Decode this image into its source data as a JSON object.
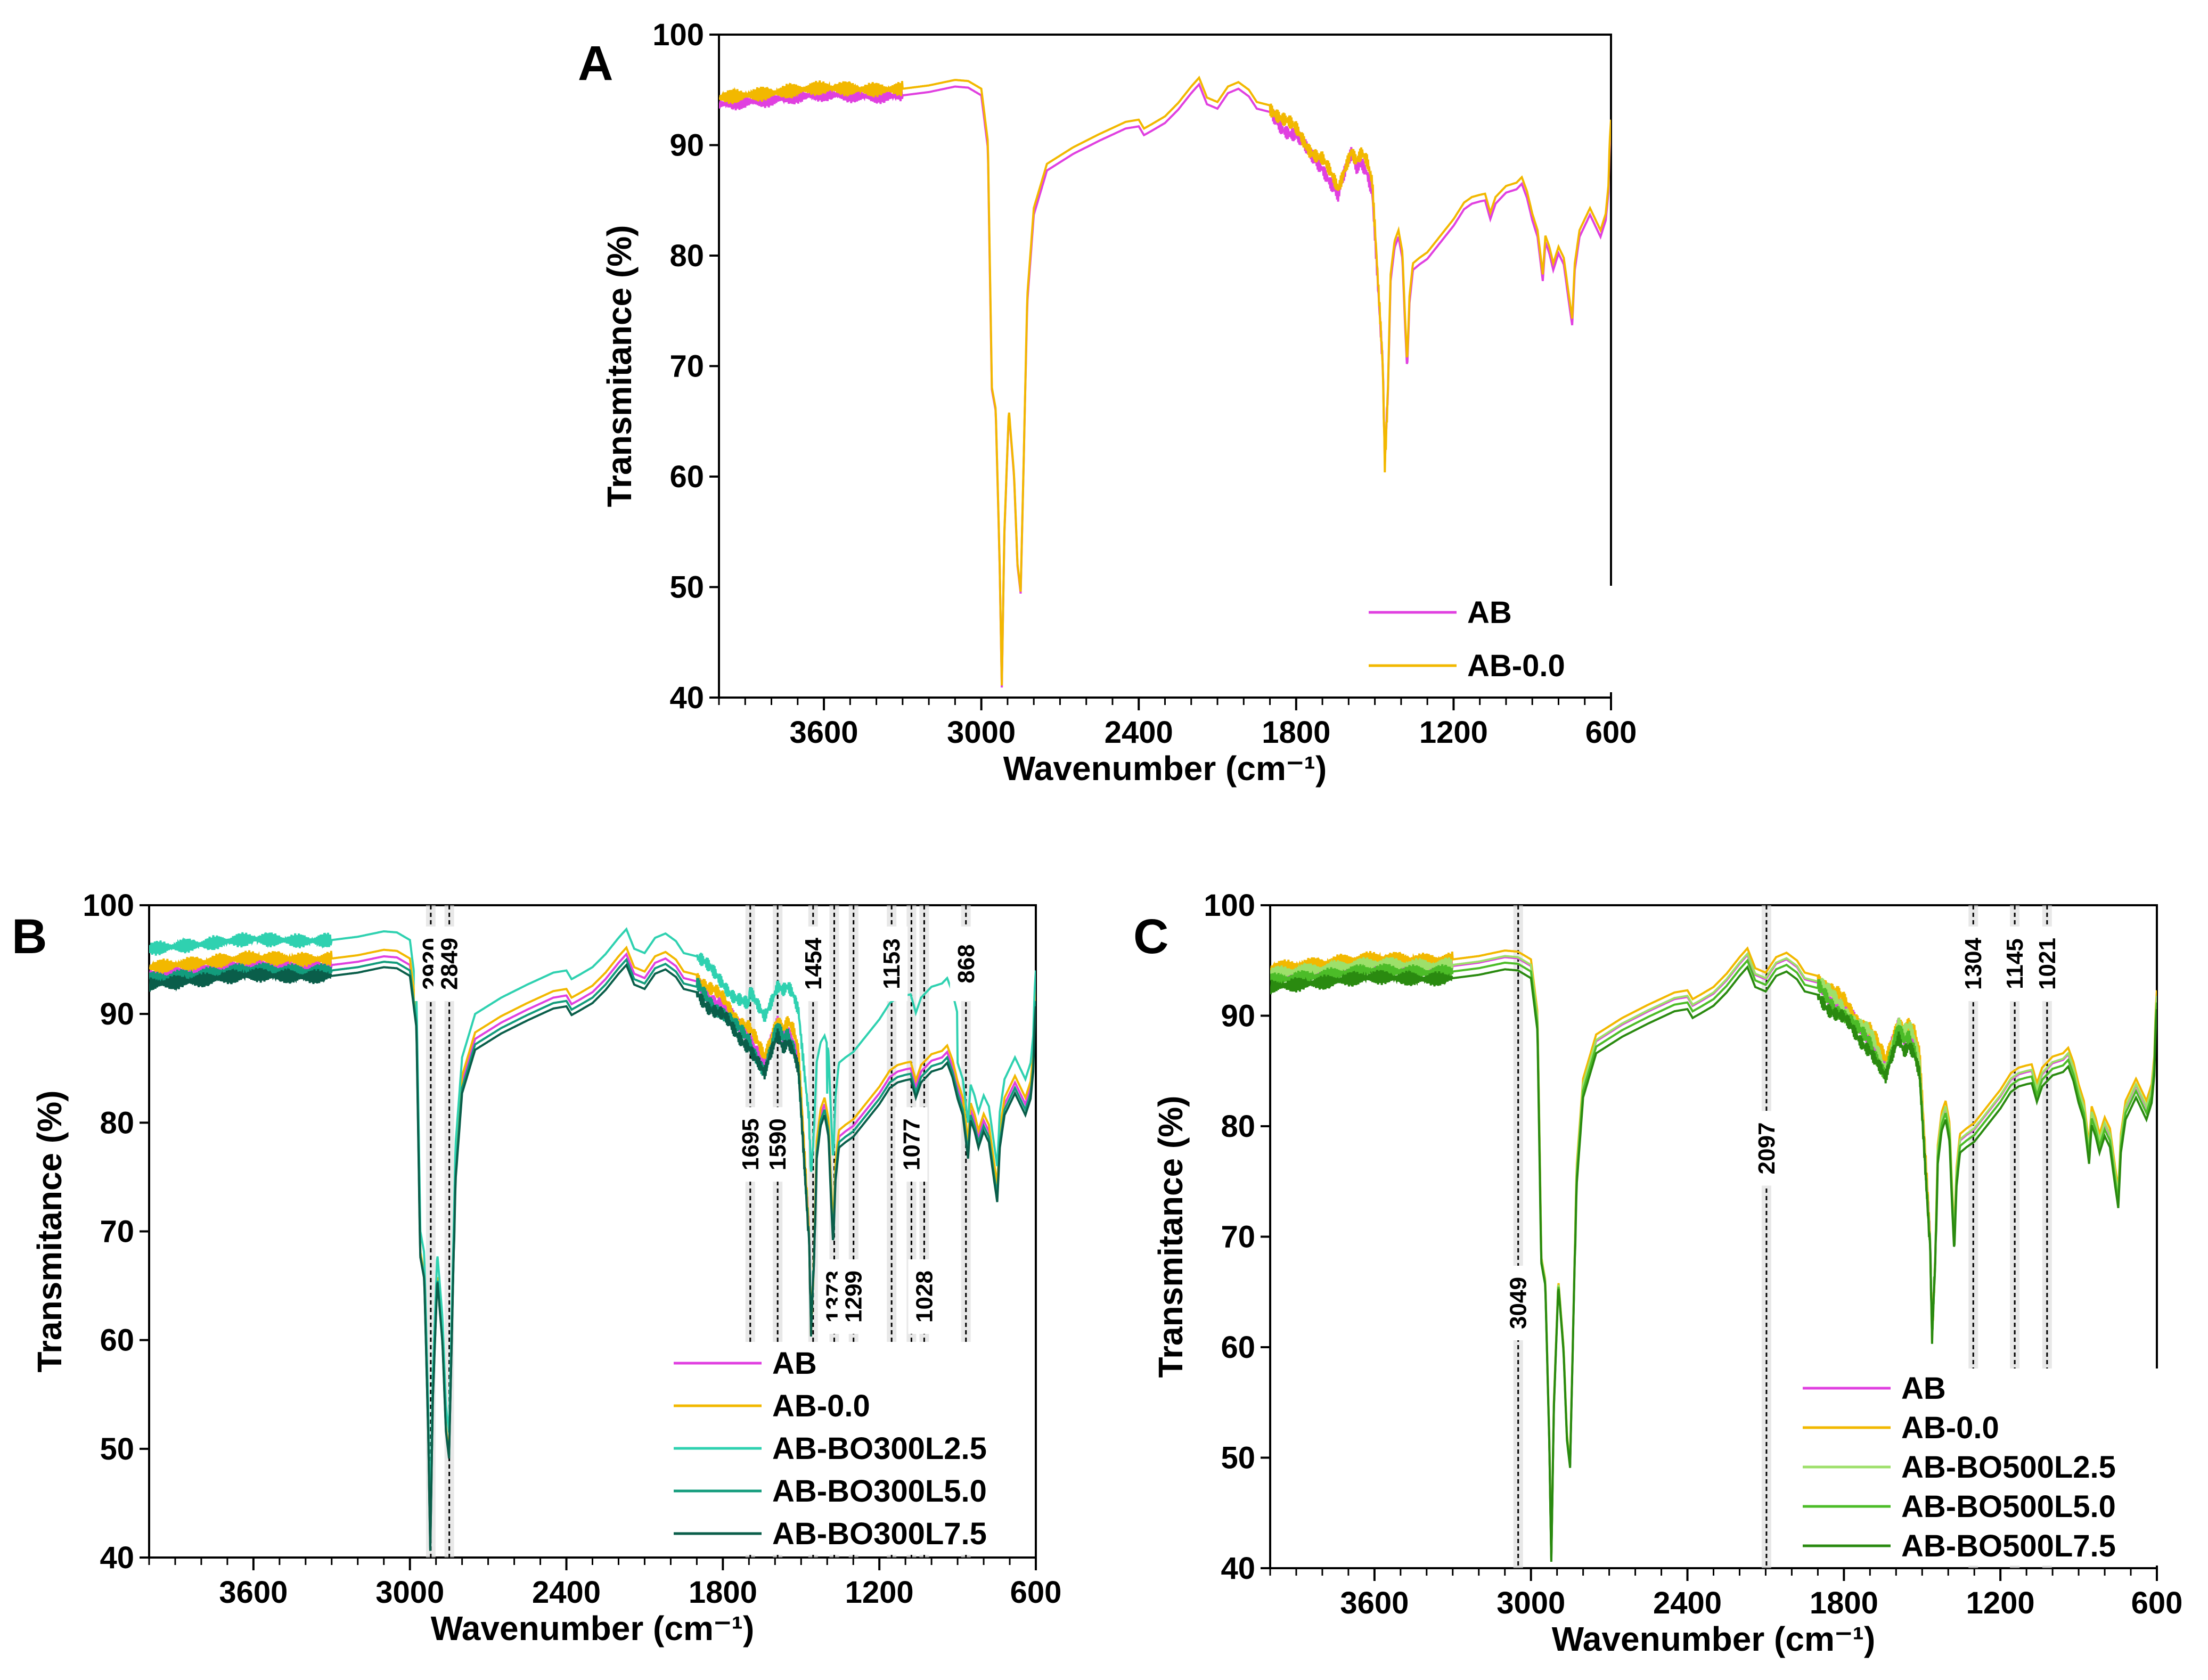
{
  "chart_data": [
    {
      "panel": "A",
      "type": "line",
      "xlabel": "Wavenumber (cm⁻¹)",
      "ylabel": "Transmitance (%)",
      "xlim": [
        4000,
        600
      ],
      "ylim": [
        40,
        100
      ],
      "xticks": [
        3600,
        3000,
        2400,
        1800,
        1200,
        600
      ],
      "yticks": [
        40,
        50,
        60,
        70,
        80,
        90,
        100
      ],
      "legend_position": "bottom-right",
      "series": [
        {
          "name": "AB",
          "color": "#e040e0",
          "offset": -0.3
        },
        {
          "name": "AB-0.0",
          "color": "#f2b800",
          "offset": 0.3
        }
      ],
      "annotations": []
    },
    {
      "panel": "B",
      "type": "line",
      "xlabel": "Wavenumber (cm⁻¹)",
      "ylabel": "Transmitance (%)",
      "xlim": [
        4000,
        600
      ],
      "ylim": [
        40,
        100
      ],
      "xticks": [
        3600,
        3000,
        2400,
        1800,
        1200,
        600
      ],
      "yticks": [
        40,
        50,
        60,
        70,
        80,
        90,
        100
      ],
      "legend_position": "bottom-right",
      "series": [
        {
          "name": "AB",
          "color": "#e040e0",
          "offset": -0.3
        },
        {
          "name": "AB-0.0",
          "color": "#f2b800",
          "offset": 0.3
        },
        {
          "name": "AB-BO300L2.5",
          "color": "#2fd1b0",
          "offset": 2.0
        },
        {
          "name": "AB-BO300L5.0",
          "color": "#129c7c",
          "offset": -0.8
        },
        {
          "name": "AB-BO300L7.5",
          "color": "#0a5e4a",
          "offset": -1.3
        }
      ],
      "annotations": [
        {
          "label": "2920",
          "x": 2920,
          "side": "top"
        },
        {
          "label": "2849",
          "x": 2849,
          "side": "top"
        },
        {
          "label": "1695",
          "x": 1695,
          "side": "mid"
        },
        {
          "label": "1590",
          "x": 1590,
          "side": "mid"
        },
        {
          "label": "1454",
          "x": 1454,
          "side": "top"
        },
        {
          "label": "1373",
          "x": 1373,
          "side": "low"
        },
        {
          "label": "1299",
          "x": 1299,
          "side": "low"
        },
        {
          "label": "1153",
          "x": 1153,
          "side": "top"
        },
        {
          "label": "1077",
          "x": 1077,
          "side": "mid"
        },
        {
          "label": "1028",
          "x": 1028,
          "side": "low"
        },
        {
          "label": "868",
          "x": 868,
          "side": "top"
        }
      ]
    },
    {
      "panel": "C",
      "type": "line",
      "xlabel": "Wavenumber (cm⁻¹)",
      "ylabel": "Transmitance (%)",
      "xlim": [
        4000,
        600
      ],
      "ylim": [
        40,
        100
      ],
      "xticks": [
        3600,
        3000,
        2400,
        1800,
        1200,
        600
      ],
      "yticks": [
        40,
        50,
        60,
        70,
        80,
        90,
        100
      ],
      "legend_position": "bottom-right",
      "series": [
        {
          "name": "AB",
          "color": "#e040e0",
          "offset": -0.3
        },
        {
          "name": "AB-0.0",
          "color": "#f2b800",
          "offset": 0.3
        },
        {
          "name": "AB-BO500L2.5",
          "color": "#9de06a",
          "offset": -0.2
        },
        {
          "name": "AB-BO500L5.0",
          "color": "#4cbc28",
          "offset": -0.8
        },
        {
          "name": "AB-BO500L7.5",
          "color": "#2a8a10",
          "offset": -1.4
        }
      ],
      "annotations": [
        {
          "label": "3049",
          "x": 3049,
          "side": "low"
        },
        {
          "label": "2097",
          "x": 2097,
          "side": "mid"
        },
        {
          "label": "1304",
          "x": 1304,
          "side": "top"
        },
        {
          "label": "1145",
          "x": 1145,
          "side": "top"
        },
        {
          "label": "1021",
          "x": 1021,
          "side": "top"
        }
      ]
    }
  ],
  "spectrum_anchors": [
    [
      4000,
      94.0
    ],
    [
      3900,
      94.2
    ],
    [
      3800,
      94.4
    ],
    [
      3700,
      94.7
    ],
    [
      3600,
      94.9
    ],
    [
      3500,
      94.8
    ],
    [
      3400,
      94.7
    ],
    [
      3300,
      94.8
    ],
    [
      3200,
      95.1
    ],
    [
      3100,
      95.6
    ],
    [
      3050,
      95.5
    ],
    [
      3000,
      94.8
    ],
    [
      2975,
      90.0
    ],
    [
      2960,
      68.0
    ],
    [
      2945,
      66.0
    ],
    [
      2930,
      52.0
    ],
    [
      2922,
      41.0
    ],
    [
      2912,
      55.0
    ],
    [
      2895,
      66.0
    ],
    [
      2875,
      60.0
    ],
    [
      2862,
      52.0
    ],
    [
      2850,
      49.5
    ],
    [
      2838,
      62.0
    ],
    [
      2825,
      76.0
    ],
    [
      2800,
      84.0
    ],
    [
      2750,
      88.0
    ],
    [
      2650,
      89.5
    ],
    [
      2550,
      90.7
    ],
    [
      2450,
      91.8
    ],
    [
      2400,
      92.0
    ],
    [
      2380,
      91.2
    ],
    [
      2350,
      91.6
    ],
    [
      2300,
      92.3
    ],
    [
      2250,
      93.5
    ],
    [
      2200,
      95.0
    ],
    [
      2170,
      95.8
    ],
    [
      2140,
      94.0
    ],
    [
      2100,
      93.6
    ],
    [
      2060,
      95.0
    ],
    [
      2020,
      95.4
    ],
    [
      1980,
      94.7
    ],
    [
      1950,
      93.6
    ],
    [
      1900,
      93.3
    ],
    [
      1850,
      92.0
    ],
    [
      1800,
      91.0
    ],
    [
      1750,
      89.5
    ],
    [
      1700,
      88.5
    ],
    [
      1660,
      86.5
    ],
    [
      1640,
      85.5
    ],
    [
      1610,
      88.0
    ],
    [
      1590,
      89.5
    ],
    [
      1570,
      88.5
    ],
    [
      1550,
      89.0
    ],
    [
      1530,
      88.0
    ],
    [
      1510,
      86.0
    ],
    [
      1490,
      78.0
    ],
    [
      1470,
      70.0
    ],
    [
      1462,
      61.0
    ],
    [
      1450,
      68.0
    ],
    [
      1440,
      78.0
    ],
    [
      1425,
      81.0
    ],
    [
      1410,
      82.0
    ],
    [
      1395,
      80.0
    ],
    [
      1385,
      74.0
    ],
    [
      1377,
      70.0
    ],
    [
      1368,
      76.0
    ],
    [
      1355,
      79.0
    ],
    [
      1330,
      79.5
    ],
    [
      1300,
      80.0
    ],
    [
      1250,
      81.5
    ],
    [
      1200,
      83.0
    ],
    [
      1160,
      84.5
    ],
    [
      1130,
      85.0
    ],
    [
      1100,
      85.2
    ],
    [
      1080,
      85.3
    ],
    [
      1060,
      83.6
    ],
    [
      1040,
      85.0
    ],
    [
      1000,
      86.0
    ],
    [
      960,
      86.3
    ],
    [
      940,
      86.8
    ],
    [
      920,
      85.5
    ],
    [
      900,
      83.5
    ],
    [
      880,
      82.0
    ],
    [
      860,
      78.0
    ],
    [
      850,
      81.5
    ],
    [
      835,
      80.5
    ],
    [
      820,
      79.0
    ],
    [
      800,
      80.5
    ],
    [
      780,
      79.5
    ],
    [
      760,
      76.0
    ],
    [
      748,
      74.0
    ],
    [
      738,
      79.0
    ],
    [
      720,
      82.0
    ],
    [
      700,
      83.0
    ],
    [
      680,
      84.0
    ],
    [
      660,
      83.0
    ],
    [
      640,
      82.0
    ],
    [
      620,
      83.5
    ],
    [
      610,
      86.0
    ],
    [
      605,
      90.0
    ],
    [
      600,
      92.0
    ]
  ]
}
